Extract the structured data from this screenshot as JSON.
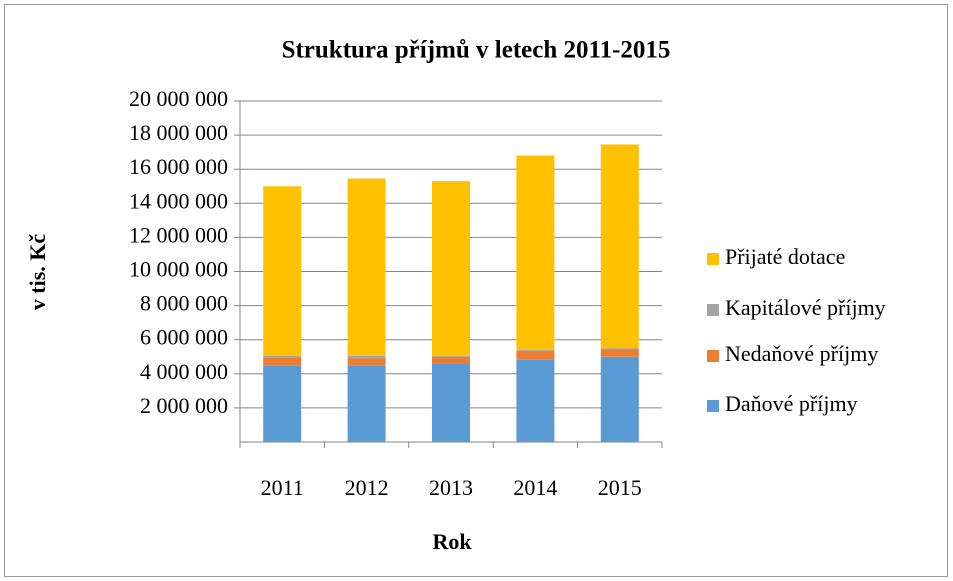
{
  "chart_data": {
    "type": "stacked_bar",
    "title": "Struktura příjmů v letech 2011-2015",
    "xlabel": "Rok",
    "ylabel": "v tis. Kč",
    "categories": [
      "2011",
      "2012",
      "2013",
      "2014",
      "2015"
    ],
    "series": [
      {
        "name": "Daňové příjmy",
        "color": "#5b9bd5",
        "values": [
          4500000,
          4500000,
          4600000,
          4850000,
          5000000
        ]
      },
      {
        "name": "Nedaňové příjmy",
        "color": "#ed7d31",
        "values": [
          450000,
          400000,
          400000,
          500000,
          450000
        ]
      },
      {
        "name": "Kapitálové příjmy",
        "color": "#a5a5a5",
        "values": [
          100000,
          150000,
          50000,
          50000,
          50000
        ]
      },
      {
        "name": "Přijaté dotace",
        "color": "#ffc000",
        "values": [
          9950000,
          10400000,
          10250000,
          11400000,
          11950000
        ]
      }
    ],
    "ylim": [
      0,
      20000000
    ],
    "yticks": [
      {
        "value": 2000000,
        "label": "2 000 000"
      },
      {
        "value": 4000000,
        "label": "4 000 000"
      },
      {
        "value": 6000000,
        "label": "6 000 000"
      },
      {
        "value": 8000000,
        "label": "8 000 000"
      },
      {
        "value": 10000000,
        "label": "10 000 000"
      },
      {
        "value": 12000000,
        "label": "12 000 000"
      },
      {
        "value": 14000000,
        "label": "14 000 000"
      },
      {
        "value": 16000000,
        "label": "16 000 000"
      },
      {
        "value": 18000000,
        "label": "18 000 000"
      },
      {
        "value": 20000000,
        "label": "20 000 000"
      }
    ],
    "grid": true,
    "legend": "right"
  }
}
